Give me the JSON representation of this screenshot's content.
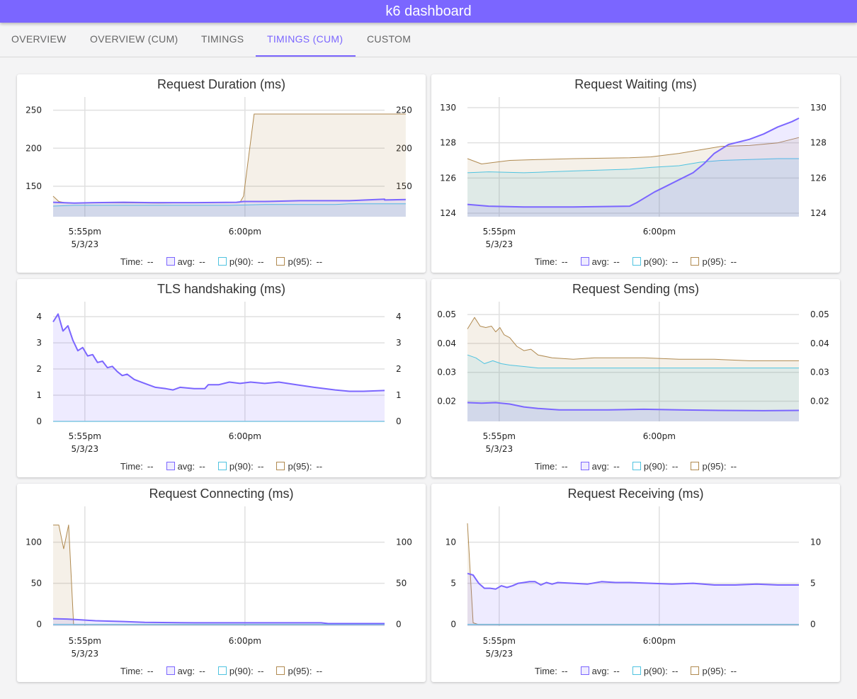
{
  "app": {
    "title": "k6 dashboard"
  },
  "tabs": [
    {
      "label": "OVERVIEW",
      "active": false
    },
    {
      "label": "OVERVIEW (CUM)",
      "active": false
    },
    {
      "label": "TIMINGS",
      "active": false
    },
    {
      "label": "TIMINGS (CUM)",
      "active": true
    },
    {
      "label": "CUSTOM",
      "active": false
    }
  ],
  "colors": {
    "accent": "#7b66ff",
    "avg": "#7b66ff",
    "p90": "#4fc3e0",
    "p95": "#b08a50"
  },
  "legend": {
    "time_label": "Time:",
    "placeholder": "--",
    "avg": "avg:",
    "p90": "p(90):",
    "p95": "p(95):"
  },
  "x_axis": {
    "ticks": [
      "5:55pm",
      "6:00pm"
    ],
    "date": "5/3/23"
  },
  "chart_data": [
    {
      "title": "Request Duration (ms)",
      "type": "area",
      "ylim": [
        110,
        258
      ],
      "yticks": [
        150,
        200,
        250
      ],
      "show_date": true,
      "series": [
        {
          "name": "avg",
          "points": [
            [
              0,
              129
            ],
            [
              30,
              128
            ],
            [
              60,
              128.5
            ],
            [
              100,
              129
            ],
            [
              140,
              128.5
            ],
            [
              200,
              128.5
            ],
            [
              260,
              129
            ],
            [
              270,
              130
            ],
            [
              300,
              130
            ],
            [
              350,
              131
            ],
            [
              420,
              131
            ],
            [
              470,
              133
            ],
            [
              470,
              132
            ],
            [
              500,
              132.5
            ]
          ]
        },
        {
          "name": "p(90)",
          "points": [
            [
              0,
              124
            ],
            [
              30,
              125
            ],
            [
              80,
              125
            ],
            [
              150,
              125
            ],
            [
              250,
              125
            ],
            [
              300,
              126
            ],
            [
              400,
              126
            ],
            [
              420,
              127
            ],
            [
              500,
              127
            ]
          ]
        },
        {
          "name": "p(95)",
          "points": [
            [
              0,
              137
            ],
            [
              8,
              130
            ],
            [
              20,
              128
            ],
            [
              60,
              128.5
            ],
            [
              150,
              128
            ],
            [
              220,
              128.5
            ],
            [
              265,
              129
            ],
            [
              270,
              137
            ],
            [
              285,
              245
            ],
            [
              380,
              245
            ],
            [
              500,
              245
            ]
          ]
        }
      ]
    },
    {
      "title": "Request Waiting (ms)",
      "type": "area",
      "ylim": [
        123.8,
        130.2
      ],
      "yticks": [
        124,
        126,
        128,
        130
      ],
      "show_date": true,
      "series": [
        {
          "name": "avg",
          "points": [
            [
              0,
              124.5
            ],
            [
              30,
              124.4
            ],
            [
              80,
              124.35
            ],
            [
              150,
              124.35
            ],
            [
              230,
              124.4
            ],
            [
              240,
              124.6
            ],
            [
              265,
              125.2
            ],
            [
              280,
              125.5
            ],
            [
              300,
              125.9
            ],
            [
              320,
              126.3
            ],
            [
              335,
              126.8
            ],
            [
              350,
              127.4
            ],
            [
              370,
              127.9
            ],
            [
              400,
              128.2
            ],
            [
              420,
              128.5
            ],
            [
              440,
              128.9
            ],
            [
              460,
              129.2
            ],
            [
              470,
              129.4
            ]
          ]
        },
        {
          "name": "p(90)",
          "points": [
            [
              0,
              126.3
            ],
            [
              30,
              126.35
            ],
            [
              80,
              126.3
            ],
            [
              150,
              126.4
            ],
            [
              230,
              126.5
            ],
            [
              260,
              126.6
            ],
            [
              300,
              126.7
            ],
            [
              330,
              126.9
            ],
            [
              360,
              127.0
            ],
            [
              400,
              127.05
            ],
            [
              440,
              127.1
            ],
            [
              470,
              127.1
            ]
          ]
        },
        {
          "name": "p(95)",
          "points": [
            [
              0,
              127.1
            ],
            [
              20,
              126.8
            ],
            [
              60,
              127.0
            ],
            [
              100,
              127.05
            ],
            [
              150,
              127.1
            ],
            [
              230,
              127.15
            ],
            [
              260,
              127.2
            ],
            [
              300,
              127.4
            ],
            [
              330,
              127.6
            ],
            [
              360,
              127.8
            ],
            [
              400,
              127.85
            ],
            [
              440,
              128.0
            ],
            [
              470,
              128.3
            ]
          ]
        }
      ]
    },
    {
      "title": "TLS handshaking (ms)",
      "type": "area",
      "ylim": [
        0,
        4.3
      ],
      "yticks": [
        0,
        1,
        2,
        3,
        4
      ],
      "show_date": true,
      "series": [
        {
          "name": "avg",
          "points": [
            [
              0,
              3.8
            ],
            [
              7,
              4.1
            ],
            [
              14,
              3.45
            ],
            [
              21,
              3.65
            ],
            [
              28,
              3.1
            ],
            [
              35,
              2.7
            ],
            [
              42,
              2.82
            ],
            [
              49,
              2.5
            ],
            [
              56,
              2.55
            ],
            [
              63,
              2.25
            ],
            [
              70,
              2.3
            ],
            [
              77,
              2.05
            ],
            [
              84,
              2.1
            ],
            [
              91,
              1.9
            ],
            [
              98,
              1.75
            ],
            [
              105,
              1.8
            ],
            [
              115,
              1.6
            ],
            [
              130,
              1.45
            ],
            [
              145,
              1.3
            ],
            [
              160,
              1.25
            ],
            [
              170,
              1.2
            ],
            [
              180,
              1.3
            ],
            [
              200,
              1.25
            ],
            [
              215,
              1.25
            ],
            [
              220,
              1.4
            ],
            [
              235,
              1.4
            ],
            [
              250,
              1.5
            ],
            [
              265,
              1.45
            ],
            [
              280,
              1.5
            ],
            [
              300,
              1.45
            ],
            [
              320,
              1.5
            ],
            [
              345,
              1.4
            ],
            [
              370,
              1.3
            ],
            [
              400,
              1.2
            ],
            [
              420,
              1.15
            ],
            [
              440,
              1.15
            ],
            [
              470,
              1.18
            ]
          ]
        },
        {
          "name": "p(90)",
          "points": [
            [
              0,
              0
            ],
            [
              470,
              0
            ]
          ]
        },
        {
          "name": "p(95)",
          "points": [
            [
              0,
              0
            ],
            [
              470,
              0
            ]
          ]
        }
      ]
    },
    {
      "title": "Request Sending (ms)",
      "type": "area",
      "ylim": [
        0.013,
        0.052
      ],
      "yticks": [
        0.02,
        0.03,
        0.04,
        0.05
      ],
      "show_date": true,
      "series": [
        {
          "name": "avg",
          "points": [
            [
              0,
              0.0195
            ],
            [
              20,
              0.0193
            ],
            [
              40,
              0.0195
            ],
            [
              60,
              0.019
            ],
            [
              80,
              0.018
            ],
            [
              100,
              0.0175
            ],
            [
              130,
              0.017
            ],
            [
              200,
              0.017
            ],
            [
              250,
              0.0172
            ],
            [
              300,
              0.017
            ],
            [
              360,
              0.0168
            ],
            [
              420,
              0.0167
            ],
            [
              470,
              0.0168
            ]
          ]
        },
        {
          "name": "p(90)",
          "points": [
            [
              0,
              0.036
            ],
            [
              12,
              0.035
            ],
            [
              24,
              0.033
            ],
            [
              36,
              0.034
            ],
            [
              48,
              0.033
            ],
            [
              60,
              0.0325
            ],
            [
              80,
              0.032
            ],
            [
              100,
              0.0315
            ],
            [
              200,
              0.0315
            ],
            [
              300,
              0.0315
            ],
            [
              400,
              0.0315
            ],
            [
              470,
              0.0315
            ]
          ]
        },
        {
          "name": "p(95)",
          "points": [
            [
              0,
              0.045
            ],
            [
              10,
              0.049
            ],
            [
              18,
              0.046
            ],
            [
              26,
              0.0455
            ],
            [
              34,
              0.046
            ],
            [
              40,
              0.044
            ],
            [
              46,
              0.0455
            ],
            [
              52,
              0.043
            ],
            [
              60,
              0.042
            ],
            [
              70,
              0.039
            ],
            [
              80,
              0.0375
            ],
            [
              90,
              0.038
            ],
            [
              100,
              0.036
            ],
            [
              120,
              0.035
            ],
            [
              150,
              0.0345
            ],
            [
              180,
              0.035
            ],
            [
              250,
              0.035
            ],
            [
              300,
              0.0345
            ],
            [
              350,
              0.0345
            ],
            [
              400,
              0.034
            ],
            [
              470,
              0.034
            ]
          ]
        }
      ]
    },
    {
      "title": "Request Connecting (ms)",
      "type": "area",
      "ylim": [
        -2,
        135
      ],
      "yticks": [
        0,
        50,
        100
      ],
      "show_date": true,
      "series": [
        {
          "name": "avg",
          "points": [
            [
              0,
              7
            ],
            [
              20,
              6.5
            ],
            [
              40,
              5.5
            ],
            [
              60,
              4.5
            ],
            [
              100,
              3.5
            ],
            [
              130,
              2.5
            ],
            [
              200,
              2
            ],
            [
              300,
              2
            ],
            [
              380,
              2
            ],
            [
              390,
              1
            ],
            [
              470,
              1
            ]
          ]
        },
        {
          "name": "p(90)",
          "points": [
            [
              0,
              0
            ],
            [
              470,
              0
            ]
          ]
        },
        {
          "name": "p(95)",
          "points": [
            [
              0,
              121
            ],
            [
              8,
              121
            ],
            [
              15,
              92
            ],
            [
              22,
              121
            ],
            [
              29,
              0
            ],
            [
              470,
              0
            ]
          ]
        }
      ]
    },
    {
      "title": "Request Receiving (ms)",
      "type": "area",
      "ylim": [
        -0.2,
        13.5
      ],
      "yticks": [
        0,
        5,
        10
      ],
      "show_date": true,
      "series": [
        {
          "name": "avg",
          "points": [
            [
              0,
              6.2
            ],
            [
              8,
              6.0
            ],
            [
              16,
              5.0
            ],
            [
              24,
              4.4
            ],
            [
              32,
              4.4
            ],
            [
              40,
              4.3
            ],
            [
              48,
              4.7
            ],
            [
              56,
              4.5
            ],
            [
              64,
              4.7
            ],
            [
              72,
              5.0
            ],
            [
              80,
              5.1
            ],
            [
              88,
              5.2
            ],
            [
              96,
              5.2
            ],
            [
              104,
              4.8
            ],
            [
              112,
              5.1
            ],
            [
              120,
              4.9
            ],
            [
              128,
              5.1
            ],
            [
              150,
              5.0
            ],
            [
              170,
              4.9
            ],
            [
              190,
              5.2
            ],
            [
              210,
              5.1
            ],
            [
              230,
              5.1
            ],
            [
              260,
              5.0
            ],
            [
              290,
              4.9
            ],
            [
              320,
              5.0
            ],
            [
              350,
              4.8
            ],
            [
              380,
              4.8
            ],
            [
              410,
              4.9
            ],
            [
              440,
              4.8
            ],
            [
              470,
              4.8
            ]
          ]
        },
        {
          "name": "p(90)",
          "points": [
            [
              0,
              0
            ],
            [
              470,
              0
            ]
          ]
        },
        {
          "name": "p(95)",
          "points": [
            [
              0,
              12.3
            ],
            [
              8,
              0.2
            ],
            [
              15,
              0
            ],
            [
              470,
              0
            ]
          ]
        }
      ]
    }
  ]
}
